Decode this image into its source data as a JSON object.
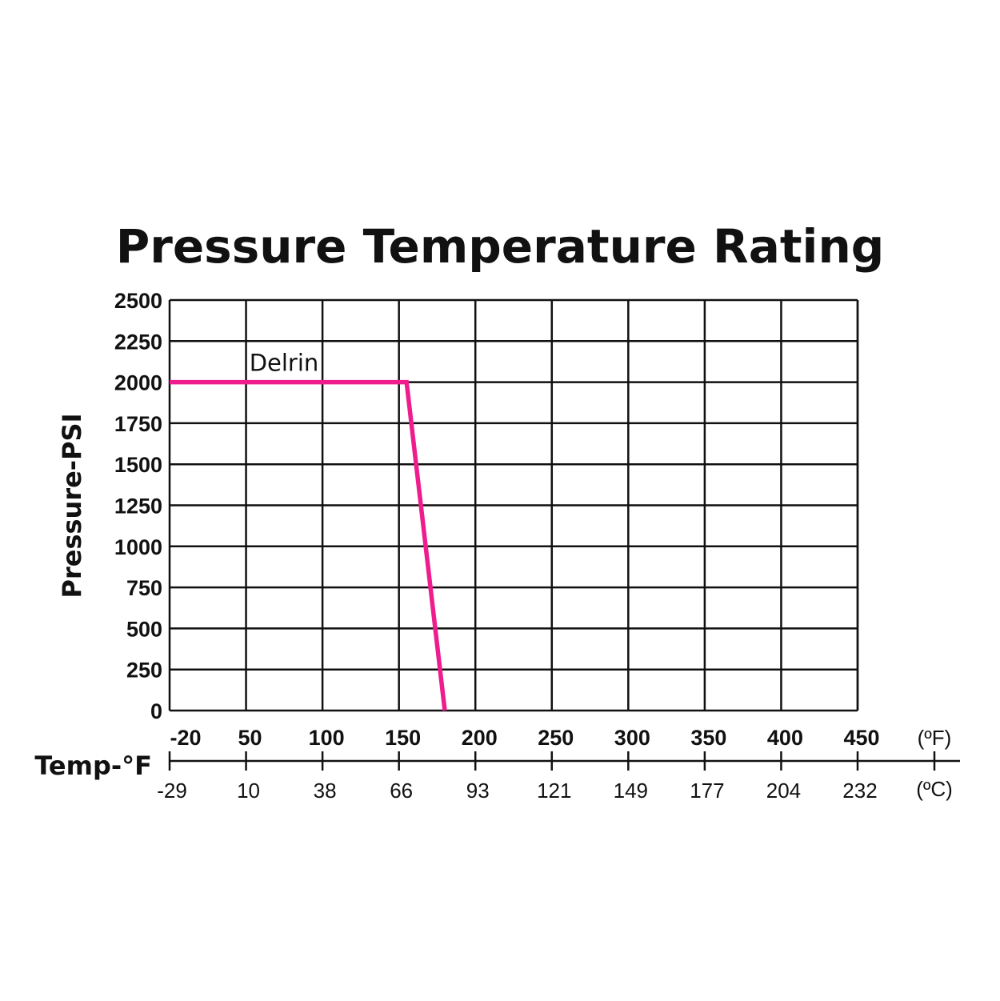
{
  "chart_data": {
    "type": "line",
    "title": "Pressure Temperature Rating",
    "ylabel": "Pressure-PSI",
    "xlabel": "Temp-°F",
    "ylim": [
      0,
      2500
    ],
    "xlim": [
      -20,
      470
    ],
    "yticks": [
      0,
      250,
      500,
      750,
      1000,
      1250,
      1500,
      1750,
      2000,
      2250,
      2500
    ],
    "xticks_f": [
      -20,
      50,
      100,
      150,
      200,
      250,
      300,
      350,
      400,
      450
    ],
    "xticks_c": [
      -29,
      10,
      38,
      66,
      93,
      121,
      149,
      177,
      204,
      232
    ],
    "unit_f": "(ºF)",
    "unit_c": "(ºC)",
    "grid": true,
    "series": [
      {
        "name": "Delrin",
        "color": "#ee1c8c",
        "x": [
          -20,
          155,
          180
        ],
        "y": [
          2000,
          2000,
          0
        ]
      }
    ]
  }
}
